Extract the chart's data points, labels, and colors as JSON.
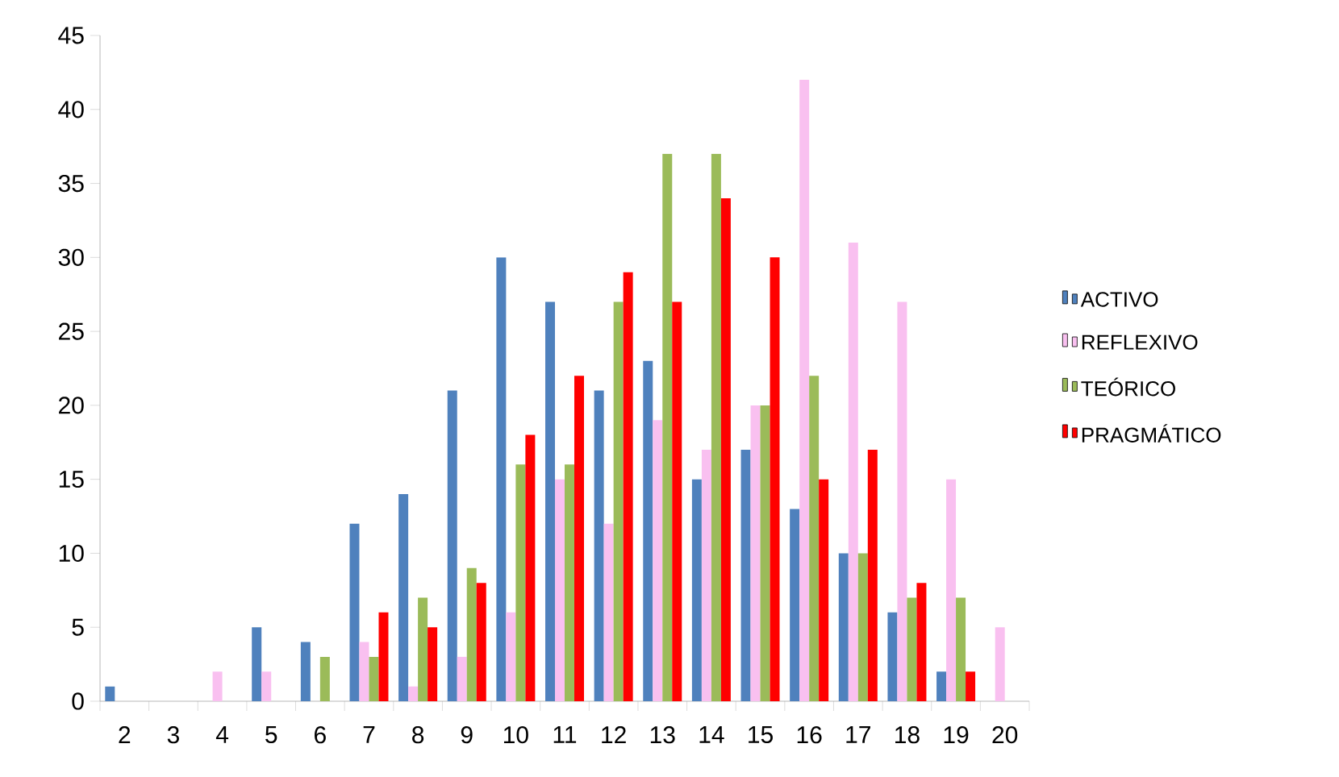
{
  "chart_data": {
    "type": "bar",
    "categories": [
      "2",
      "3",
      "4",
      "5",
      "6",
      "7",
      "8",
      "9",
      "10",
      "11",
      "12",
      "13",
      "14",
      "15",
      "16",
      "17",
      "18",
      "19",
      "20"
    ],
    "series": [
      {
        "name": "ACTIVO",
        "color": "#4f81bd",
        "values": [
          1,
          null,
          null,
          5,
          4,
          12,
          14,
          21,
          30,
          27,
          21,
          23,
          15,
          17,
          13,
          10,
          6,
          2,
          null
        ]
      },
      {
        "name": "REFLEXIVO",
        "color": "#f9c0f0",
        "values": [
          null,
          null,
          2,
          2,
          null,
          4,
          1,
          3,
          6,
          15,
          12,
          19,
          17,
          20,
          42,
          31,
          27,
          15,
          5
        ]
      },
      {
        "name": "TEÓRICO",
        "color": "#9bbb59",
        "values": [
          null,
          null,
          null,
          null,
          3,
          3,
          7,
          9,
          16,
          16,
          27,
          37,
          37,
          20,
          22,
          10,
          7,
          7,
          null
        ]
      },
      {
        "name": "PRAGMÁTICO",
        "color": "#ff0000",
        "values": [
          null,
          null,
          null,
          null,
          null,
          6,
          5,
          8,
          18,
          22,
          29,
          27,
          34,
          30,
          15,
          17,
          8,
          2,
          null
        ]
      }
    ],
    "ylim": [
      0,
      45
    ],
    "yticks": [
      0,
      5,
      10,
      15,
      20,
      25,
      30,
      35,
      40,
      45
    ],
    "legend": "right"
  }
}
